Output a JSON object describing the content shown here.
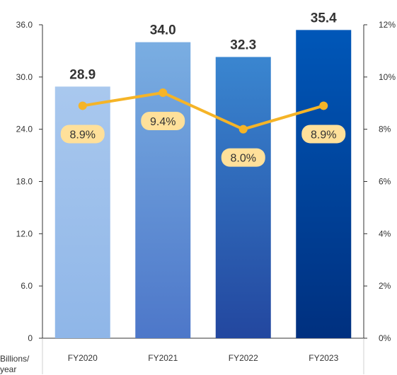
{
  "chart_data": {
    "type": "bar",
    "categories": [
      "FY2020",
      "FY2021",
      "FY2022",
      "FY2023"
    ],
    "series": [
      {
        "values": [
          28.9,
          34.0,
          32.3,
          35.4
        ],
        "value_labels": [
          "28.9",
          "34.0",
          "32.3",
          "35.4"
        ]
      },
      {
        "values": [
          8.9,
          9.4,
          8.0,
          8.9
        ],
        "value_labels": [
          "8.9%",
          "9.4%",
          "8.0%",
          "8.9%"
        ],
        "type": "line",
        "axis": "right"
      }
    ],
    "ylim": [
      0,
      36
    ],
    "y_ticks": [
      "0",
      "6.0",
      "12.0",
      "18.0",
      "24.0",
      "30.0",
      "36.0"
    ],
    "y2lim": [
      0,
      12
    ],
    "y2_ticks": [
      "0%",
      "2%",
      "4%",
      "6%",
      "8%",
      "10%",
      "12%"
    ],
    "ylabel": "Billions/ year",
    "grid": false,
    "colors": {
      "bars_top": [
        "#a9c8ee",
        "#7aaee2",
        "#3a86d0",
        "#0057b8"
      ],
      "bars_bottom": [
        "#8fb6e8",
        "#4d77c9",
        "#23479f",
        "#00307f"
      ],
      "line": "#f5b427",
      "pct_label_bg": "#ffe09a"
    }
  }
}
